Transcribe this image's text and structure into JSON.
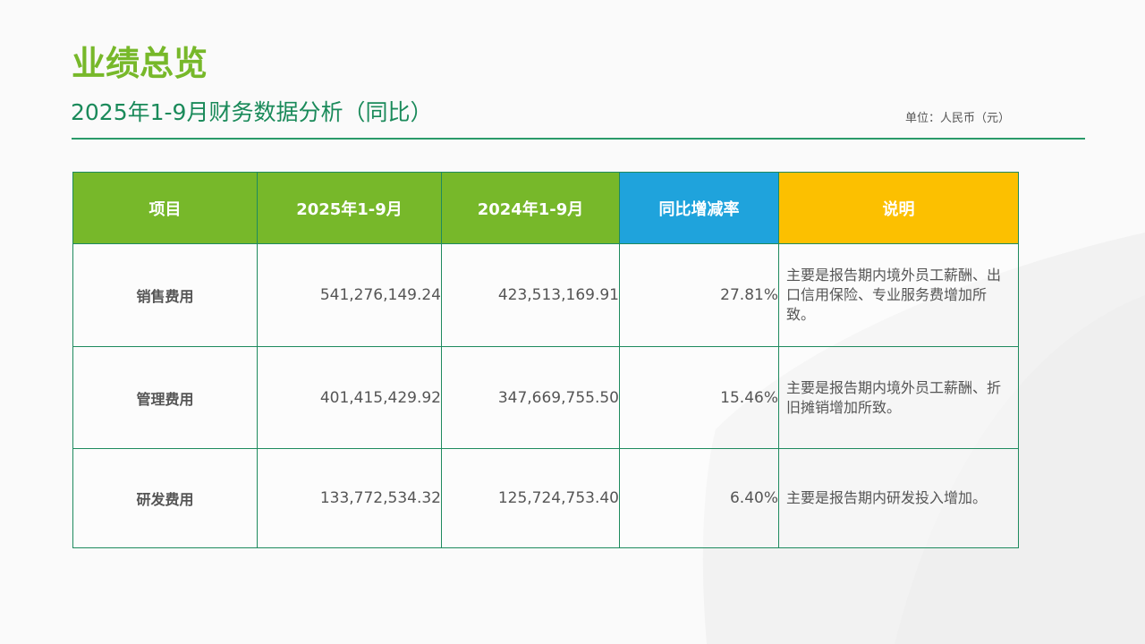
{
  "title": "业绩总览",
  "subtitle": "2025年1-9月财务数据分析（同比）",
  "unit": "单位：人民币（元）",
  "table": {
    "headers": [
      "项目",
      "2025年1-9月",
      "2024年1-9月",
      "同比增减率",
      "说明"
    ],
    "rows": [
      {
        "item": "销售费用",
        "y2025": "541,276,149.24",
        "y2024": "423,513,169.91",
        "yoy": "27.81%",
        "note": "主要是报告期内境外员工薪酬、出口信用保险、专业服务费增加所致。"
      },
      {
        "item": "管理费用",
        "y2025": "401,415,429.92",
        "y2024": "347,669,755.50",
        "yoy": "15.46%",
        "note": "主要是报告期内境外员工薪酬、折旧摊销增加所致。"
      },
      {
        "item": "研发费用",
        "y2025": "133,772,534.32",
        "y2024": "125,724,753.40",
        "yoy": "6.40%",
        "note": "主要是报告期内研发投入增加。"
      }
    ]
  },
  "colors": {
    "green": "#77b82a",
    "blue": "#1fa3dc",
    "yellow": "#fcc000",
    "border": "#1e8a5e"
  }
}
